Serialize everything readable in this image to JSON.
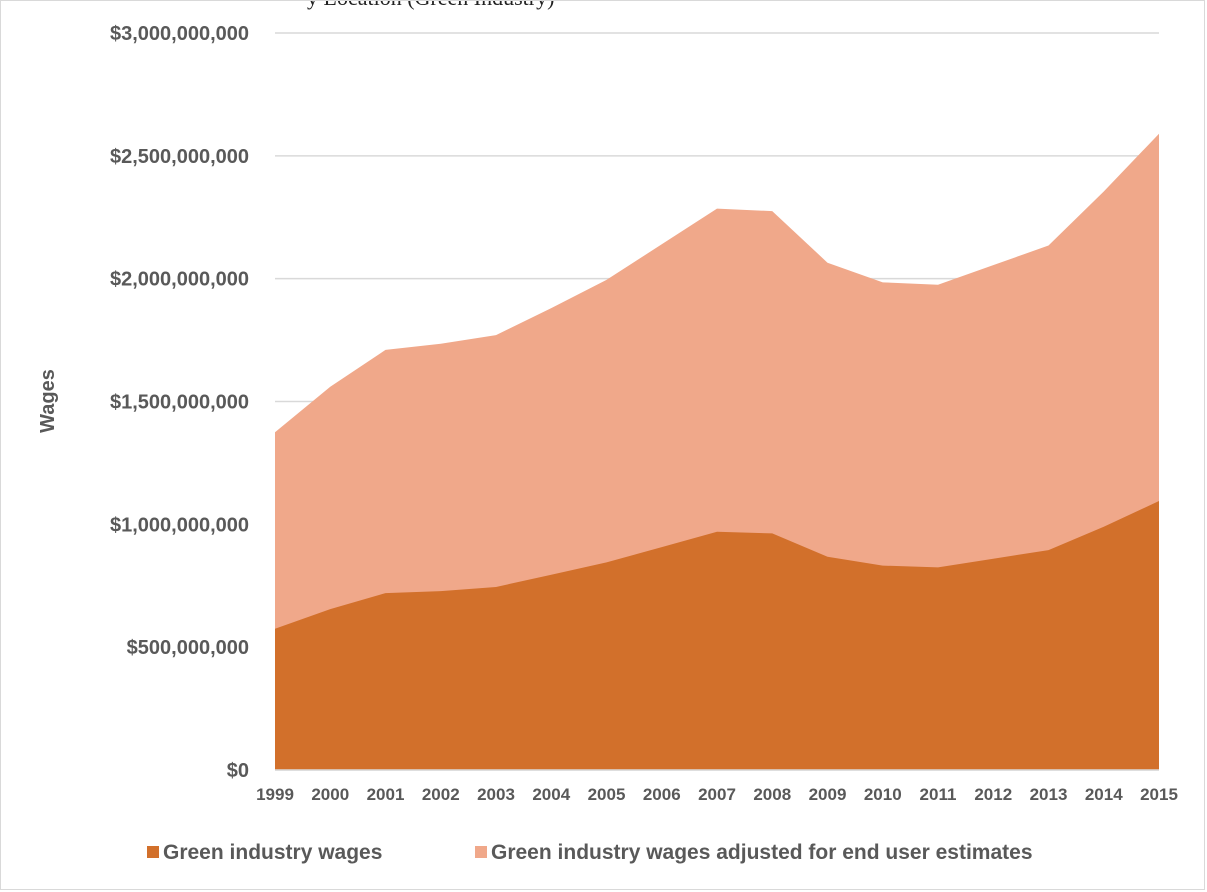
{
  "chart_data": {
    "type": "area",
    "title": "",
    "title_fragment": "y Location (Green Industry) ",
    "xlabel": "",
    "ylabel": "Wages",
    "ylim": [
      0,
      3000000000
    ],
    "y_ticks": [
      0,
      500000000,
      1000000000,
      1500000000,
      2000000000,
      2500000000,
      3000000000
    ],
    "y_tick_labels": [
      "$0",
      "$500,000,000",
      "$1,000,000,000",
      "$1,500,000,000",
      "$2,000,000,000",
      "$2,500,000,000",
      "$3,000,000,000"
    ],
    "categories": [
      "1999",
      "2000",
      "2001",
      "2002",
      "2003",
      "2004",
      "2005",
      "2006",
      "2007",
      "2008",
      "2009",
      "2010",
      "2011",
      "2012",
      "2013",
      "2014",
      "2015"
    ],
    "grid": true,
    "legend_position": "bottom",
    "series": [
      {
        "name": "Green industry wages",
        "color": "#d2702b",
        "values": [
          575000000,
          655000000,
          720000000,
          728000000,
          745000000,
          795000000,
          845000000,
          907000000,
          970000000,
          963000000,
          868000000,
          832000000,
          825000000,
          860000000,
          895000000,
          990000000,
          1095000000
        ]
      },
      {
        "name": "Green industry wages adjusted for end user estimates",
        "color": "#f0a88a",
        "values": [
          1375000000,
          1560000000,
          1710000000,
          1735000000,
          1770000000,
          1880000000,
          1995000000,
          2140000000,
          2285000000,
          2275000000,
          2065000000,
          1985000000,
          1975000000,
          2055000000,
          2135000000,
          2355000000,
          2590000000
        ]
      }
    ]
  }
}
